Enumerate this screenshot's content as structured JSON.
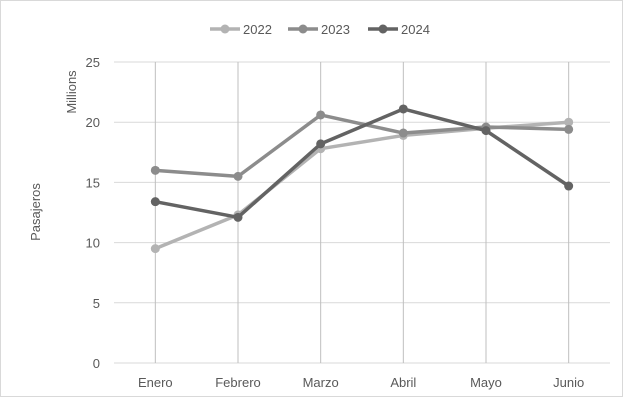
{
  "chart_data": {
    "type": "line",
    "categories": [
      "Enero",
      "Febrero",
      "Marzo",
      "Abril",
      "Mayo",
      "Junio"
    ],
    "series": [
      {
        "name": "2022",
        "values": [
          9.5,
          12.3,
          17.8,
          18.9,
          19.5,
          20.0
        ],
        "color": "#b3b3b3"
      },
      {
        "name": "2023",
        "values": [
          16.0,
          15.5,
          20.6,
          19.1,
          19.6,
          19.4
        ],
        "color": "#8c8c8c"
      },
      {
        "name": "2024",
        "values": [
          13.4,
          12.1,
          18.2,
          21.1,
          19.3,
          14.7
        ],
        "color": "#636363"
      }
    ],
    "ylabel": "Pasajeros",
    "y_unit_label": "Millions",
    "ylim": [
      0,
      25
    ],
    "yticks": [
      0,
      5,
      10,
      15,
      20,
      25
    ],
    "grid": true,
    "legend_position": "top-center"
  }
}
